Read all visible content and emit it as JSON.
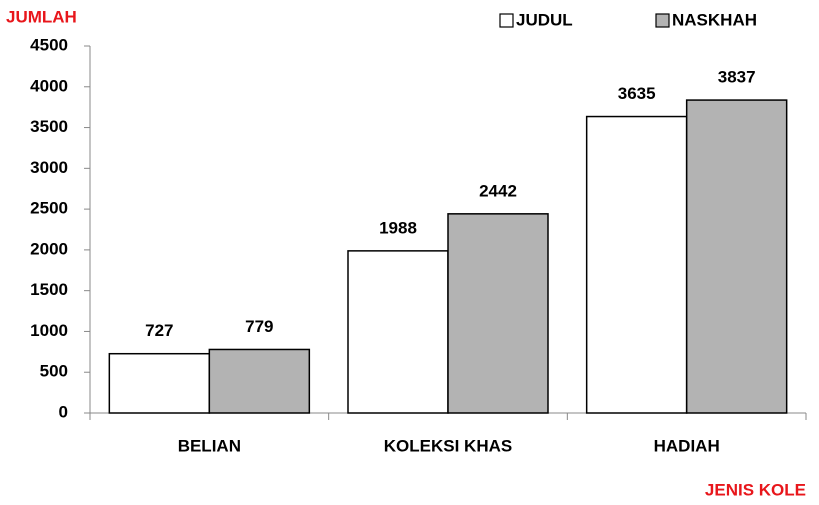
{
  "chart_data": {
    "type": "bar",
    "y_label": "JUMLAH",
    "x_label": "JENIS KOLE",
    "categories": [
      "BELIAN",
      "KOLEKSI KHAS",
      "HADIAH"
    ],
    "series": [
      {
        "name": "JUDUL",
        "color": "#ffffff",
        "values": [
          727,
          1988,
          3635
        ]
      },
      {
        "name": "NASKHAH",
        "color": "#b3b3b3",
        "values": [
          779,
          2442,
          3837
        ]
      }
    ],
    "ylim": [
      0,
      4500
    ],
    "yticks": [
      0,
      500,
      1000,
      1500,
      2000,
      2500,
      3000,
      3500,
      4000,
      4500
    ],
    "legend": "top-right"
  }
}
